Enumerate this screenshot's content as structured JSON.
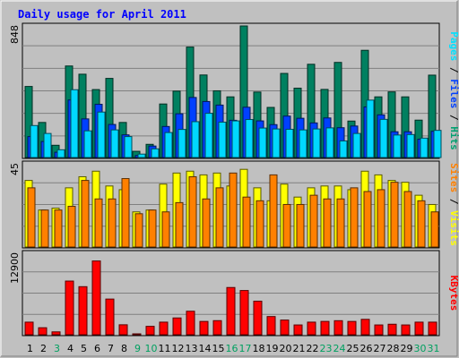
{
  "chart_data": {
    "type": "bar",
    "title": "Daily usage for April 2011",
    "days": [
      "1",
      "2",
      "3",
      "4",
      "5",
      "6",
      "7",
      "8",
      "9",
      "10",
      "11",
      "12",
      "13",
      "14",
      "15",
      "16",
      "17",
      "18",
      "19",
      "20",
      "21",
      "22",
      "23",
      "24",
      "25",
      "26",
      "27",
      "28",
      "29",
      "30",
      "31"
    ],
    "weekend_days": [
      "3",
      "9",
      "10",
      "16",
      "17",
      "23",
      "24",
      "30",
      "31"
    ],
    "panels": [
      {
        "id": "hits_files_pages",
        "ytick": "848",
        "ymax": 848,
        "label_parts": [
          {
            "text": "Pages",
            "color": "#00e0ff"
          },
          {
            "text": " / ",
            "color": "#000000"
          },
          {
            "text": "Files",
            "color": "#0040ff"
          },
          {
            "text": " / ",
            "color": "#000000"
          },
          {
            "text": "Hits",
            "color": "#00a070"
          }
        ],
        "series": [
          {
            "name": "Hits",
            "color": "#008060",
            "values": [
              458,
              226,
              79,
              590,
              537,
              438,
              510,
              226,
              40,
              85,
              345,
              428,
              712,
              532,
              430,
              391,
              848,
              422,
              323,
              542,
              447,
              601,
              439,
              613,
              235,
              691,
              391,
              423,
              391,
              241,
              531
            ]
          },
          {
            "name": "Files",
            "color": "#0040ff",
            "values": [
              135,
              103,
              34,
              371,
              249,
              343,
              213,
              146,
              13,
              74,
              200,
              282,
              387,
              361,
              338,
              240,
              324,
              236,
              212,
              267,
              253,
              223,
              255,
              192,
              203,
              326,
              275,
              166,
              166,
              118,
              169
            ]
          },
          {
            "name": "Pages",
            "color": "#00d8ff",
            "values": [
              206,
              155,
              50,
              437,
              172,
              293,
              178,
              135,
              22,
              56,
              161,
              181,
              231,
              285,
              228,
              236,
              245,
              190,
              184,
              182,
              178,
              184,
              191,
              107,
              155,
              370,
              246,
              145,
              148,
              125,
              175
            ]
          }
        ]
      },
      {
        "id": "visits_sites",
        "ytick": "45",
        "ymax": 45,
        "label_parts": [
          {
            "text": "Sites",
            "color": "#ff8000"
          },
          {
            "text": " / ",
            "color": "#000000"
          },
          {
            "text": "Visits",
            "color": "#ffff00"
          }
        ],
        "series": [
          {
            "name": "Visits",
            "color": "#ffff00",
            "values": [
              36,
              20,
              21,
              32,
              38,
              41,
              33,
              31,
              19,
              20,
              34,
              40,
              41,
              39,
              40,
              33,
              42,
              32,
              25,
              34,
              27,
              32,
              33,
              33,
              31,
              41,
              39,
              36,
              35,
              28,
              23
            ]
          },
          {
            "name": "Sites",
            "color": "#ff8000",
            "values": [
              32,
              20,
              20,
              22,
              36,
              26,
              26,
              37,
              18,
              20,
              19,
              24,
              38,
              26,
              32,
              40,
              27,
              25,
              39,
              23,
              23,
              28,
              26,
              26,
              32,
              30,
              31,
              35,
              30,
              25,
              19
            ]
          }
        ]
      },
      {
        "id": "kbytes",
        "ytick": "12900",
        "ymax": 12900,
        "label_parts": [
          {
            "text": "KBytes",
            "color": "#ff0000"
          }
        ],
        "series": [
          {
            "name": "KBytes",
            "color": "#ff0000",
            "values": [
              1995,
              1108,
              456,
              8500,
              7612,
              11685,
              5650,
              1577,
              111,
              1330,
              1995,
              2660,
              3723,
              2106,
              2231,
              7480,
              7005,
              5316,
              2882,
              2327,
              1550,
              1995,
              2112,
              2223,
              2106,
              2438,
              1550,
              1664,
              1550,
              1995,
              1995
            ]
          }
        ]
      }
    ]
  }
}
